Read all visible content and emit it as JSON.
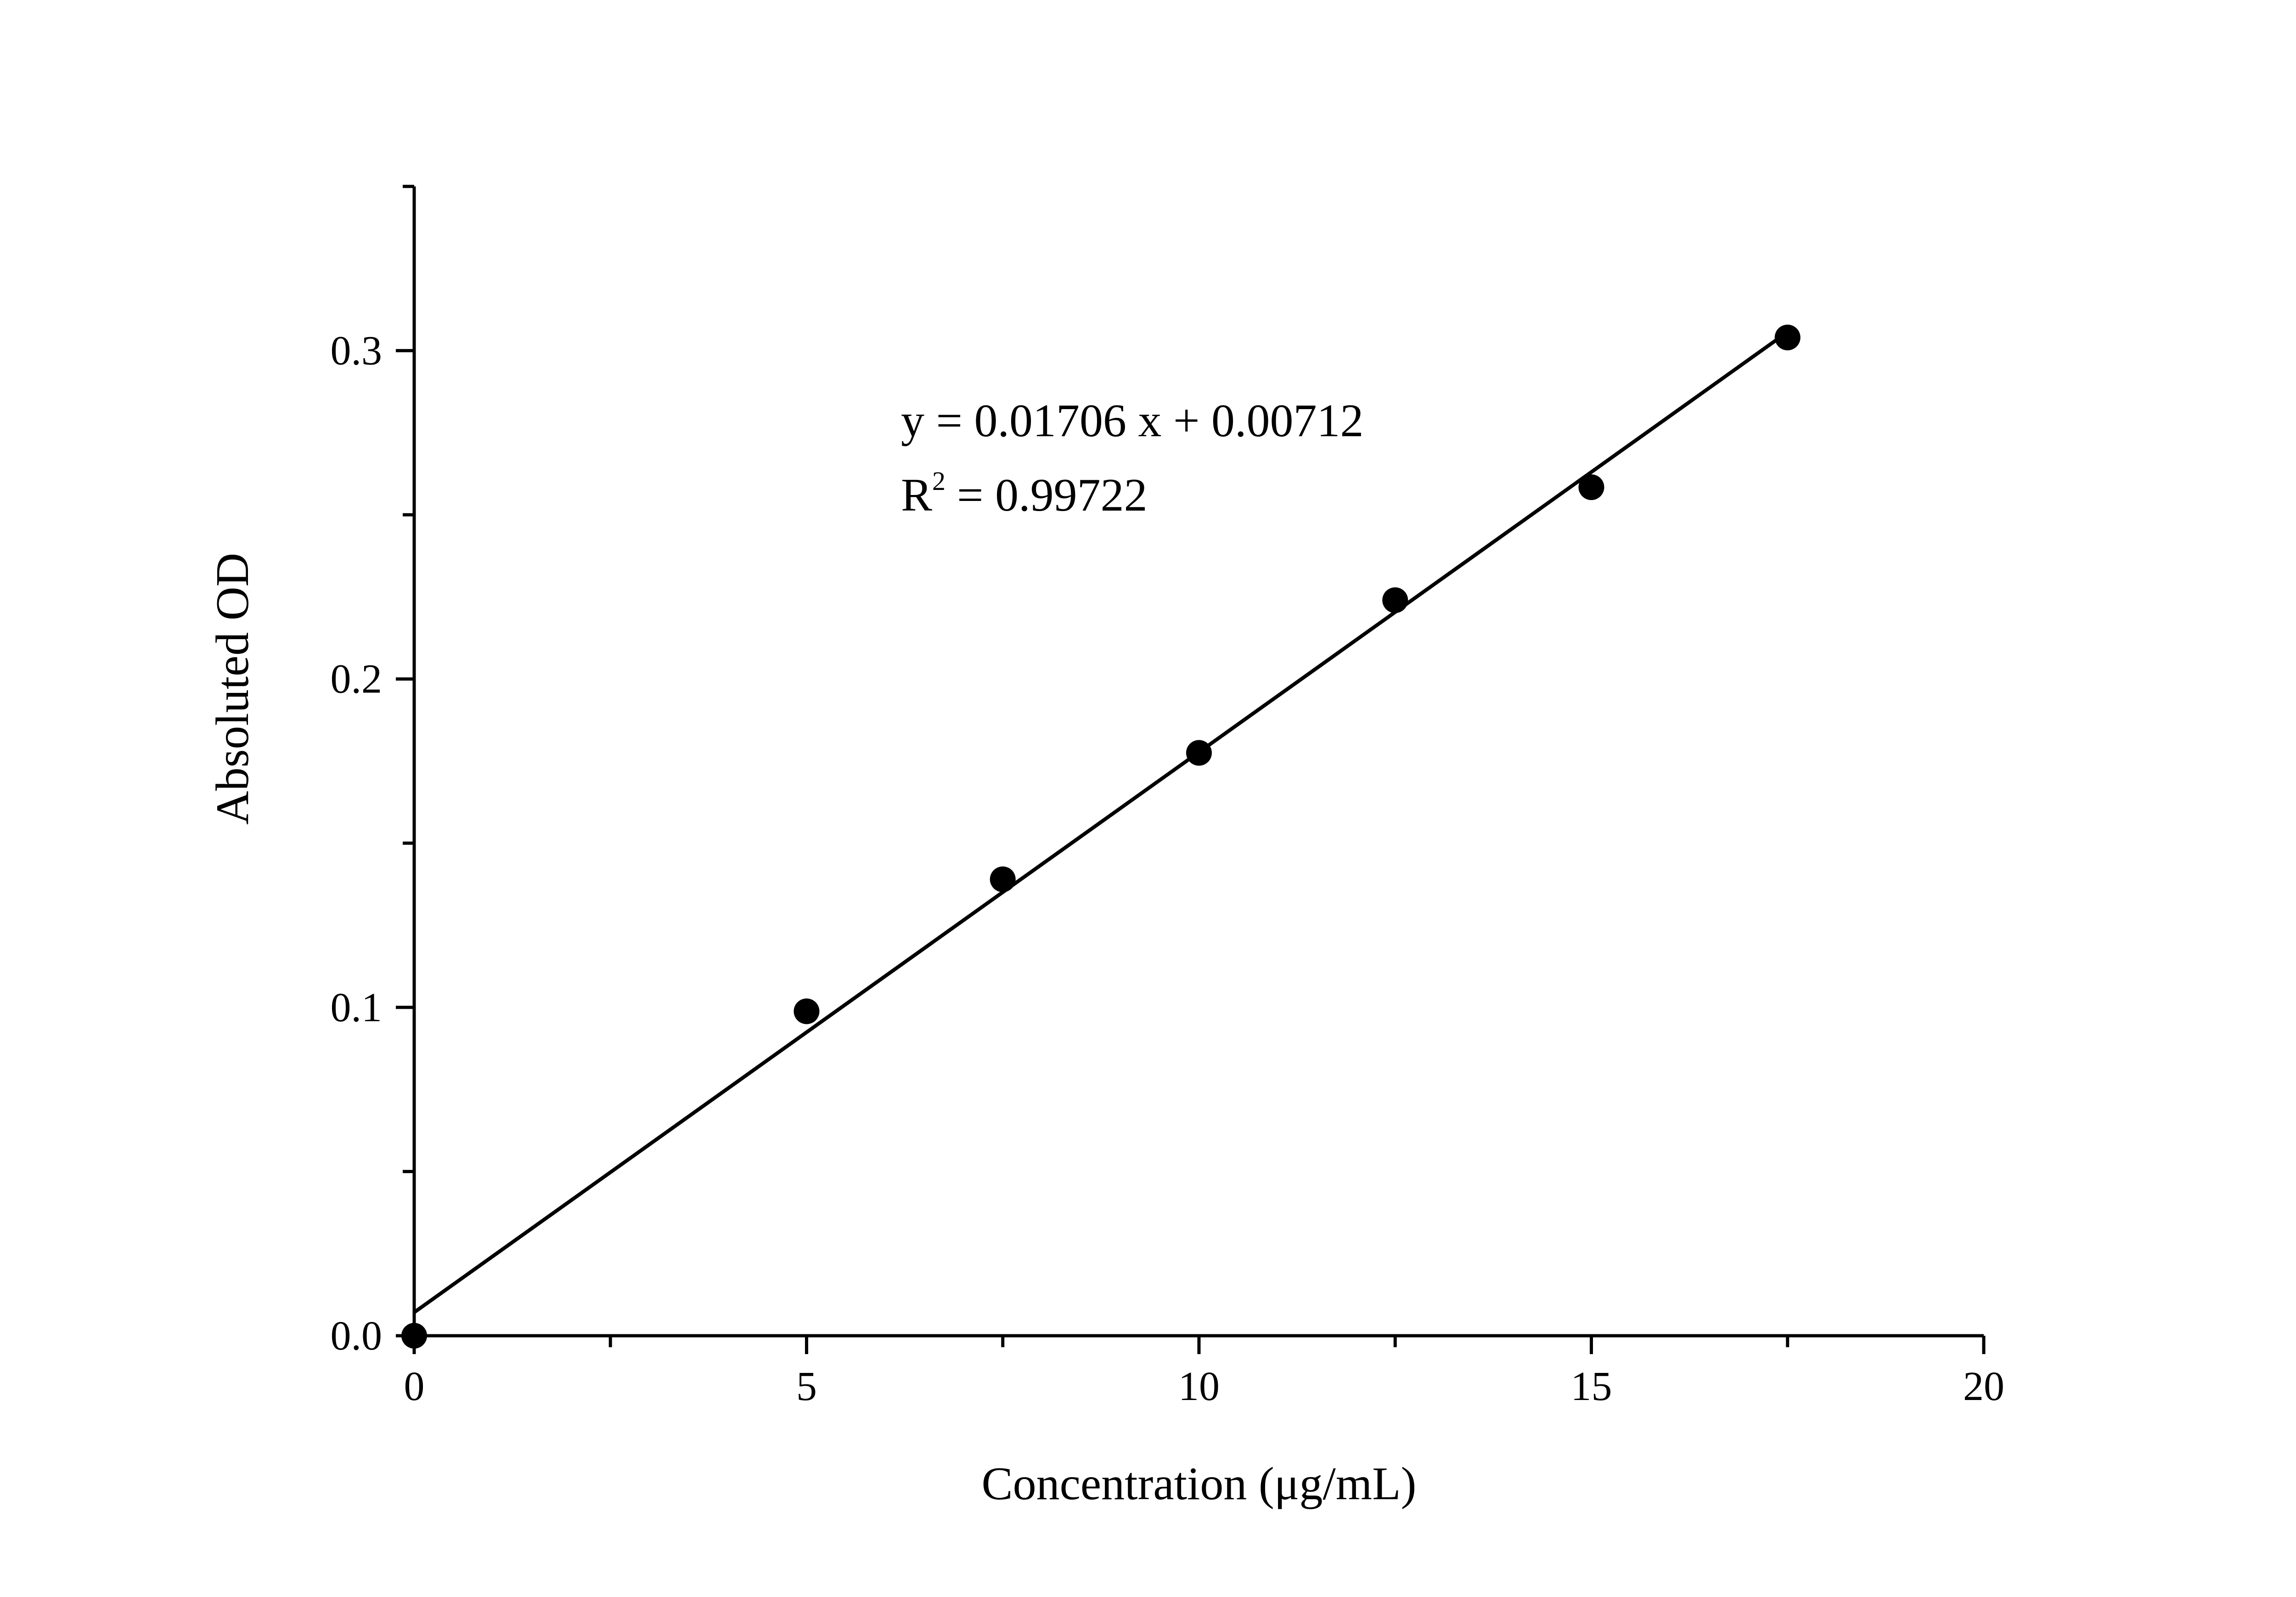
{
  "chart_data": {
    "type": "scatter",
    "x_label": "Concentration (μg/mL)",
    "y_label": "Absoluted OD",
    "x": [
      0,
      5,
      7.5,
      10,
      12.5,
      15,
      17.5
    ],
    "values": [
      0,
      0.0988,
      0.139,
      0.1775,
      0.224,
      0.2584,
      0.304
    ],
    "color": "#000000",
    "fit_line": {
      "x": [
        0,
        17.5
      ],
      "values": [
        0.00712,
        0.30567
      ]
    },
    "annotation": {
      "equation": "y = 0.01706 x + 0.00712",
      "r2": [
        "R",
        "2",
        "= 0.99722"
      ]
    },
    "xlim": [
      0,
      20
    ],
    "xticks": [
      0,
      5,
      10,
      15,
      20
    ],
    "xminorticks": [
      2.5,
      7.5,
      12.5,
      17.5
    ],
    "ylim": [
      0,
      0.35
    ],
    "yticks": [
      {
        "value": 0,
        "label": "0.0"
      },
      0.1,
      0.2,
      0.3
    ],
    "yminorticks": [
      0.05,
      0.15,
      0.25,
      0.35
    ],
    "grid": false
  }
}
